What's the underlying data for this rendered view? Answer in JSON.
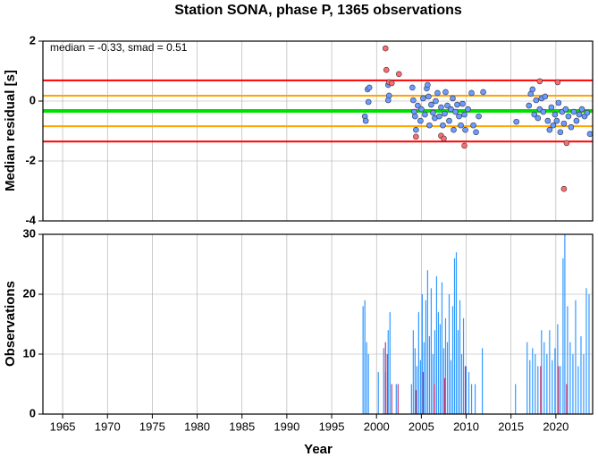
{
  "chart_data": [
    {
      "type": "scatter",
      "title": "Station SONA, phase P, 1365 observations",
      "ylabel": "Median residual [s]",
      "annotation": "median = -0.33, smad = 0.51",
      "xlim": [
        1962.8,
        2024.1
      ],
      "ylim": [
        -4,
        2
      ],
      "yticks": [
        2,
        0,
        -2,
        -4
      ],
      "grid": true,
      "hlines": [
        {
          "value": 0.69,
          "color": "#ff0000"
        },
        {
          "value": 0.18,
          "color": "#ffa500"
        },
        {
          "value": -0.33,
          "color": "#00e000"
        },
        {
          "value": -0.84,
          "color": "#ffa500"
        },
        {
          "value": -1.35,
          "color": "#ff0000"
        }
      ],
      "series": [
        {
          "color": "#6b9bff",
          "x": [
            1998.7,
            1998.8,
            1999.0,
            1999.2,
            1999.1,
            2001.3,
            2001.4,
            2001.3,
            2004.0,
            2004.1,
            2004.2,
            2004.3,
            2004.4,
            2004.6,
            2004.9,
            2005.0,
            2005.2,
            2005.4,
            2005.6,
            2005.7,
            2005.8,
            2005.9,
            2006.1,
            2006.3,
            2006.5,
            2006.6,
            2006.8,
            2007.0,
            2007.2,
            2007.4,
            2007.6,
            2007.7,
            2007.9,
            2008.1,
            2008.3,
            2008.5,
            2008.6,
            2008.8,
            2009.0,
            2009.2,
            2009.4,
            2009.6,
            2009.8,
            2009.9,
            2010.2,
            2010.6,
            2010.8,
            2011.1,
            2011.4,
            2011.9,
            2015.6,
            2017.0,
            2017.2,
            2017.4,
            2017.6,
            2017.8,
            2018.0,
            2018.2,
            2018.4,
            2018.6,
            2018.8,
            2019.1,
            2019.3,
            2019.5,
            2019.7,
            2019.9,
            2020.1,
            2020.3,
            2020.5,
            2020.7,
            2020.9,
            2021.1,
            2021.4,
            2021.7,
            2022.0,
            2022.3,
            2022.6,
            2022.9,
            2023.2,
            2023.5,
            2023.8
          ],
          "values": [
            -0.51,
            -0.66,
            0.39,
            0.45,
            -0.03,
            0.54,
            0.18,
            0.03,
            0.45,
            0.03,
            -0.36,
            -0.51,
            -0.96,
            -0.15,
            -0.66,
            -0.27,
            0.09,
            -0.45,
            0.42,
            0.54,
            0.15,
            -0.81,
            -0.12,
            -0.39,
            -0.57,
            0,
            0.27,
            -0.51,
            -0.21,
            -0.81,
            -0.42,
            0.3,
            -0.15,
            -0.66,
            -0.27,
            0.09,
            -0.96,
            -0.36,
            -0.12,
            -0.51,
            -0.81,
            -0.09,
            -0.45,
            -0.96,
            -0.27,
            0.27,
            -0.81,
            -1.04,
            -0.51,
            0.3,
            -0.69,
            -0.15,
            0.24,
            0.39,
            -0.45,
            0.03,
            -0.57,
            -0.27,
            0.09,
            -0.36,
            0.15,
            -0.66,
            -0.96,
            -0.21,
            -0.81,
            -0.45,
            -0.66,
            -0.06,
            -1.04,
            -0.36,
            -0.75,
            -0.27,
            -0.51,
            -0.87,
            -0.36,
            -0.66,
            -0.45,
            -0.27,
            -0.51,
            -0.39,
            -1.1
          ]
        },
        {
          "color": "#ff6b6b",
          "x": [
            2001.0,
            2001.1,
            2001.4,
            2001.7,
            2002.5,
            2004.4,
            2007.2,
            2007.5,
            2009.8,
            2018.2,
            2020.2,
            2020.9,
            2021.2
          ],
          "values": [
            1.76,
            1.04,
            0.63,
            0.6,
            0.9,
            -1.19,
            -1.16,
            -1.25,
            -1.49,
            0.66,
            0.63,
            -2.93,
            -1.4
          ]
        }
      ]
    },
    {
      "type": "bar",
      "xlabel": "Year",
      "ylabel": "Observations",
      "xlim": [
        1962.8,
        2024.1
      ],
      "xticks": [
        1965,
        1970,
        1975,
        1980,
        1985,
        1990,
        1995,
        2000,
        2005,
        2010,
        2015,
        2020
      ],
      "ylim": [
        0,
        30
      ],
      "yticks": [
        0,
        10,
        20,
        30
      ],
      "grid": true,
      "series": [
        {
          "color": "#3399ff",
          "x": [
            1998.5,
            1998.7,
            1998.9,
            1999.1,
            2000.2,
            2000.8,
            2001.0,
            2001.3,
            2001.5,
            2002.2,
            2003.9,
            2004.1,
            2004.3,
            2004.5,
            2004.7,
            2004.9,
            2005.1,
            2005.3,
            2005.5,
            2005.7,
            2005.9,
            2006.1,
            2006.3,
            2006.5,
            2006.7,
            2006.9,
            2007.1,
            2007.3,
            2007.5,
            2007.7,
            2007.9,
            2008.1,
            2008.3,
            2008.5,
            2008.7,
            2008.9,
            2009.1,
            2009.3,
            2009.5,
            2009.7,
            2010.0,
            2010.3,
            2010.6,
            2011.0,
            2011.8,
            2015.5,
            2016.8,
            2017.1,
            2017.4,
            2017.7,
            2018.0,
            2018.4,
            2018.7,
            2019.0,
            2019.3,
            2019.6,
            2019.9,
            2020.2,
            2020.5,
            2020.8,
            2021.0,
            2021.3,
            2021.6,
            2021.9,
            2022.2,
            2022.5,
            2022.8,
            2023.1,
            2023.4,
            2023.7
          ],
          "values": [
            18,
            19,
            12,
            10,
            7,
            11,
            7,
            14,
            17,
            5,
            5,
            14,
            11,
            8,
            17,
            9,
            20,
            12,
            19,
            24,
            13,
            21,
            10,
            14,
            23,
            17,
            15,
            22,
            11,
            16,
            12,
            20,
            9,
            18,
            26,
            27,
            14,
            19,
            10,
            16,
            8,
            7,
            5,
            5,
            11,
            5,
            12,
            9,
            11,
            10,
            8,
            14,
            12,
            10,
            14,
            9,
            11,
            15,
            8,
            26,
            30,
            18,
            12,
            10,
            19,
            8,
            13,
            10,
            21,
            20
          ]
        },
        {
          "color": "#cc3366",
          "x": [
            2001.0,
            2001.2,
            2001.7,
            2002.4,
            2004.4,
            2005.2,
            2006.5,
            2007.6,
            2009.9,
            2018.3,
            2020.3,
            2021.2
          ],
          "values": [
            12,
            10,
            5,
            5,
            4,
            7,
            5,
            6,
            8,
            8,
            8,
            5
          ]
        }
      ]
    }
  ]
}
